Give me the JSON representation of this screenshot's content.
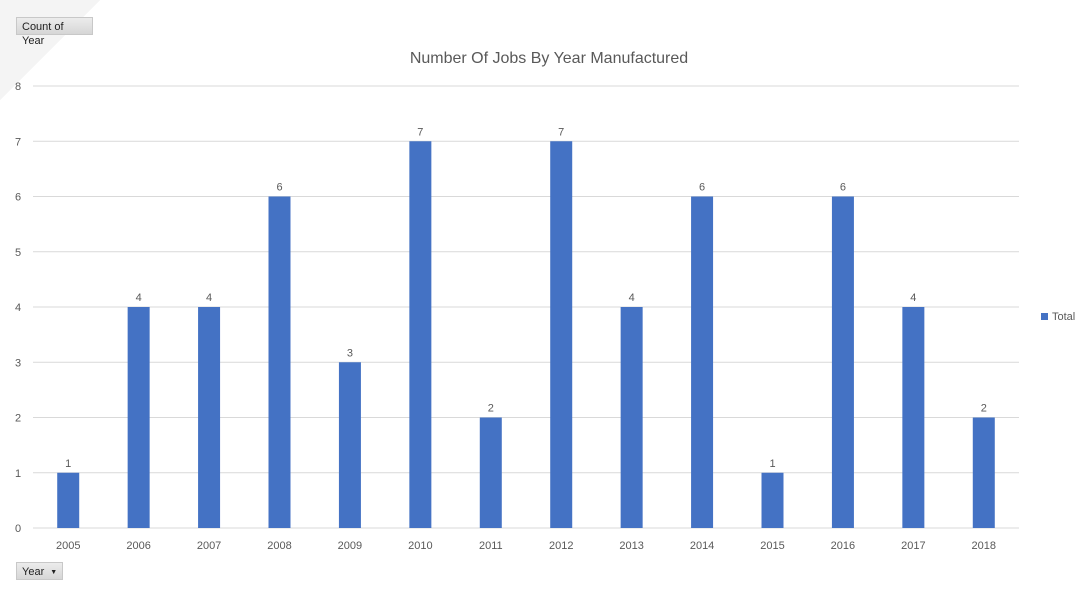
{
  "field_buttons": {
    "values_field": "Count of Year",
    "axis_field": "Year"
  },
  "icons": {
    "axis_dropdown": "dropdown-arrow-icon"
  },
  "colors": {
    "bar": "#4472c4",
    "grid": "#d9d9d9",
    "text": "#595959"
  },
  "chart_data": {
    "type": "bar",
    "title": "Number Of Jobs By Year Manufactured",
    "xlabel": "",
    "ylabel": "",
    "categories": [
      "2005",
      "2006",
      "2007",
      "2008",
      "2009",
      "2010",
      "2011",
      "2012",
      "2013",
      "2014",
      "2015",
      "2016",
      "2017",
      "2018"
    ],
    "series": [
      {
        "name": "Total",
        "values": [
          1,
          4,
          4,
          6,
          3,
          7,
          2,
          7,
          4,
          6,
          1,
          6,
          4,
          2
        ]
      }
    ],
    "ylim": [
      0,
      8
    ],
    "yticks": [
      0,
      1,
      2,
      3,
      4,
      5,
      6,
      7,
      8
    ],
    "grid": true,
    "data_labels": true,
    "legend_position": "right"
  }
}
